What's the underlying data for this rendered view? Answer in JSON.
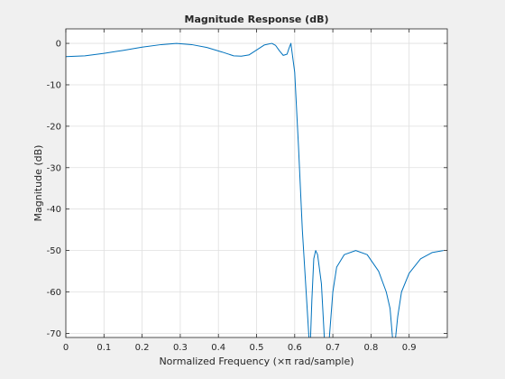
{
  "chart_data": {
    "type": "line",
    "title": "Magnitude Response (dB)",
    "xlabel": "Normalized Frequency (×π rad/sample)",
    "ylabel": "Magnitude (dB)",
    "xlim": [
      0,
      1
    ],
    "ylim": [
      -71,
      3.5
    ],
    "xticks": [
      0,
      0.1,
      0.2,
      0.3,
      0.4,
      0.5,
      0.6,
      0.7,
      0.8,
      0.9
    ],
    "xtick_labels": [
      "0",
      "0.1",
      "0.2",
      "0.3",
      "0.4",
      "0.5",
      "0.6",
      "0.7",
      "0.8",
      "0.9"
    ],
    "yticks": [
      0,
      -10,
      -20,
      -30,
      -40,
      -50,
      -60,
      -70
    ],
    "ytick_labels": [
      "0",
      "-10",
      "-20",
      "-30",
      "-40",
      "-50",
      "-60",
      "-70"
    ],
    "grid": true,
    "series": [
      {
        "color": "#0072bd",
        "x": [
          0.0,
          0.05,
          0.1,
          0.15,
          0.2,
          0.25,
          0.29,
          0.33,
          0.37,
          0.41,
          0.44,
          0.46,
          0.48,
          0.5,
          0.52,
          0.54,
          0.55,
          0.56,
          0.57,
          0.58,
          0.585,
          0.59,
          0.6,
          0.61,
          0.62,
          0.63,
          0.64,
          0.645,
          0.65,
          0.655,
          0.66,
          0.67,
          0.68,
          0.69,
          0.7,
          0.71,
          0.73,
          0.76,
          0.79,
          0.82,
          0.84,
          0.85,
          0.86,
          0.87,
          0.88,
          0.9,
          0.93,
          0.96,
          0.99
        ],
        "y": [
          -3.2,
          -3.0,
          -2.4,
          -1.7,
          -0.9,
          -0.3,
          0.0,
          -0.3,
          -1.0,
          -2.1,
          -3.0,
          -3.1,
          -2.8,
          -1.6,
          -0.4,
          0.0,
          -0.5,
          -1.8,
          -2.9,
          -2.6,
          -1.2,
          0.0,
          -7.0,
          -25.0,
          -45.0,
          -60.0,
          -75.0,
          -62.0,
          -52.0,
          -50.0,
          -51.0,
          -58.0,
          -75.0,
          -72.0,
          -60.0,
          -54.0,
          -51.0,
          -50.0,
          -51.0,
          -55.0,
          -60.0,
          -64.0,
          -75.0,
          -66.0,
          -60.0,
          -55.5,
          -52.0,
          -50.5,
          -50.0
        ]
      }
    ]
  }
}
